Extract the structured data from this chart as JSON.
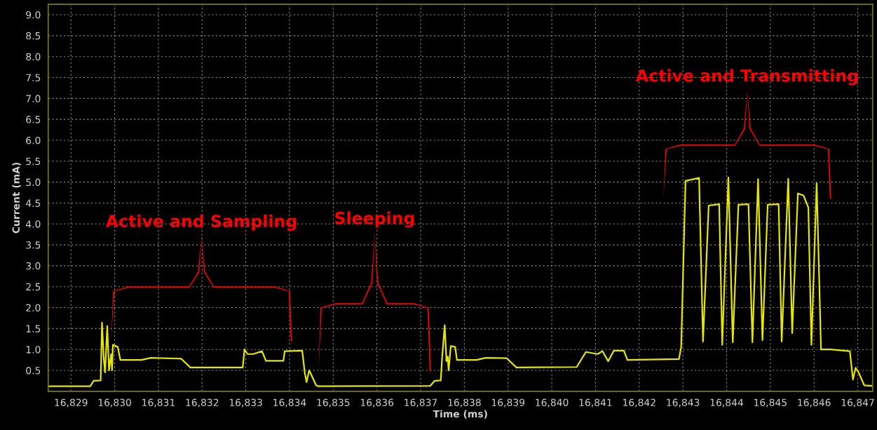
{
  "chart_data": {
    "type": "line",
    "xlabel": "Time (ms)",
    "ylabel": "Current (mA)",
    "x": [
      16828.49,
      16829.44,
      16829.52,
      16829.68,
      16829.71,
      16829.75,
      16829.78,
      16829.83,
      16829.87,
      16829.92,
      16829.94,
      16829.96,
      16830.07,
      16830.13,
      16830.61,
      16830.83,
      16831.52,
      16831.73,
      16832.93,
      16832.97,
      16833.04,
      16833.17,
      16833.37,
      16833.46,
      16833.86,
      16833.89,
      16834.29,
      16834.35,
      16834.39,
      16834.45,
      16834.5,
      16834.61,
      16834.66,
      16837.22,
      16837.32,
      16837.46,
      16837.49,
      16837.55,
      16837.59,
      16837.62,
      16837.64,
      16837.69,
      16837.79,
      16837.83,
      16838.28,
      16838.49,
      16838.97,
      16839.19,
      16840.57,
      16840.78,
      16841.05,
      16841.16,
      16841.29,
      16841.42,
      16841.65,
      16841.73,
      16842.91,
      16842.96,
      16843.06,
      16843.37,
      16843.46,
      16843.59,
      16843.83,
      16843.9,
      16844.04,
      16844.14,
      16844.27,
      16844.5,
      16844.59,
      16844.72,
      16844.82,
      16844.94,
      16845.19,
      16845.26,
      16845.41,
      16845.5,
      16845.63,
      16845.76,
      16845.87,
      16845.94,
      16846.06,
      16846.16,
      16846.37,
      16846.82,
      16846.89,
      16846.95,
      16847.02,
      16847.15,
      16847.33
    ],
    "series": [
      {
        "color": "#e6e600",
        "values": [
          0.12,
          0.12,
          0.25,
          0.26,
          1.64,
          0.78,
          0.45,
          1.56,
          0.5,
          0.89,
          0.5,
          1.11,
          1.06,
          0.75,
          0.75,
          0.8,
          0.78,
          0.57,
          0.57,
          1.0,
          0.89,
          0.89,
          0.96,
          0.73,
          0.73,
          0.96,
          0.97,
          0.44,
          0.22,
          0.5,
          0.39,
          0.14,
          0.12,
          0.13,
          0.25,
          0.26,
          0.78,
          1.58,
          0.72,
          0.83,
          0.5,
          1.08,
          1.06,
          0.75,
          0.75,
          0.8,
          0.79,
          0.57,
          0.58,
          0.94,
          0.89,
          0.96,
          0.72,
          0.97,
          0.97,
          0.75,
          0.77,
          1.06,
          5.03,
          5.1,
          1.19,
          4.44,
          4.47,
          1.11,
          5.11,
          1.17,
          4.46,
          4.47,
          1.17,
          5.07,
          1.22,
          4.46,
          4.47,
          1.19,
          5.08,
          1.39,
          4.73,
          4.68,
          4.39,
          1.11,
          4.97,
          1.0,
          1.0,
          0.96,
          0.28,
          0.56,
          0.45,
          0.14,
          0.13
        ]
      }
    ],
    "xlim": [
      16828.48,
      16847.34
    ],
    "ylim": [
      0,
      9.25
    ],
    "xticks": [
      {
        "value": 16829,
        "label": "16,829"
      },
      {
        "value": 16830,
        "label": "16,830"
      },
      {
        "value": 16831,
        "label": "16,831"
      },
      {
        "value": 16832,
        "label": "16,832"
      },
      {
        "value": 16833,
        "label": "16,833"
      },
      {
        "value": 16834,
        "label": "16,834"
      },
      {
        "value": 16835,
        "label": "16,835"
      },
      {
        "value": 16836,
        "label": "16,836"
      },
      {
        "value": 16837,
        "label": "16,837"
      },
      {
        "value": 16838,
        "label": "16,838"
      },
      {
        "value": 16839,
        "label": "16,839"
      },
      {
        "value": 16840,
        "label": "16,840"
      },
      {
        "value": 16841,
        "label": "16,841"
      },
      {
        "value": 16842,
        "label": "16,842"
      },
      {
        "value": 16843,
        "label": "16,843"
      },
      {
        "value": 16844,
        "label": "16,844"
      },
      {
        "value": 16845,
        "label": "16,845"
      },
      {
        "value": 16846,
        "label": "16,846"
      },
      {
        "value": 16847,
        "label": "16,847"
      }
    ],
    "yticks": [
      0.5,
      {
        "value": 1,
        "label": "1.0"
      },
      1.5,
      {
        "value": 2,
        "label": "2.0"
      },
      2.5,
      {
        "value": 3,
        "label": "3.0"
      },
      3.5,
      {
        "value": 4,
        "label": "4.0"
      },
      4.5,
      {
        "value": 5,
        "label": "5.0"
      },
      5.5,
      {
        "value": 6,
        "label": "6.0"
      },
      6.5,
      {
        "value": 7,
        "label": "7.0"
      },
      7.5,
      {
        "value": 8,
        "label": "8.0"
      },
      8.5,
      {
        "value": 9,
        "label": "9.0"
      }
    ],
    "grid": true,
    "line_style": "solid",
    "marker": "none",
    "annotations": [
      "Active and Sampling",
      "Sleeping",
      "Active and Transmitting"
    ]
  }
}
